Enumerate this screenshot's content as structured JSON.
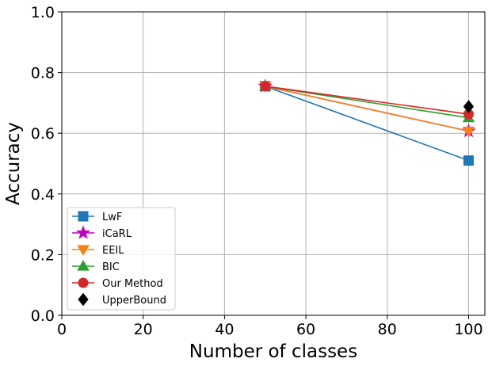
{
  "chart_data": {
    "type": "line",
    "title": "",
    "xlabel": "Number of classes",
    "ylabel": "Accuracy",
    "xlim": [
      0,
      104
    ],
    "ylim": [
      0,
      1.0
    ],
    "xticks": [
      0,
      20,
      40,
      60,
      80,
      100
    ],
    "yticks": [
      0.0,
      0.2,
      0.4,
      0.6,
      0.8,
      1.0
    ],
    "xtick_labels": [
      "0",
      "20",
      "40",
      "60",
      "80",
      "100"
    ],
    "ytick_labels": [
      "0.0",
      "0.2",
      "0.4",
      "0.6",
      "0.8",
      "1.0"
    ],
    "grid": true,
    "legend_position": "lower-left",
    "series": [
      {
        "name": "LwF",
        "x": [
          50,
          100
        ],
        "y": [
          0.755,
          0.51
        ],
        "color": "#1f77b4",
        "marker": "square",
        "line": true
      },
      {
        "name": "iCaRL",
        "x": [
          50,
          100
        ],
        "y": [
          0.755,
          0.607
        ],
        "color": "#bf00bf",
        "marker": "star",
        "line": true
      },
      {
        "name": "EEIL",
        "x": [
          50,
          100
        ],
        "y": [
          0.755,
          0.607
        ],
        "color": "#ff7f0e",
        "marker": "triangle-down",
        "line": true
      },
      {
        "name": "BIC",
        "x": [
          50,
          100
        ],
        "y": [
          0.755,
          0.651
        ],
        "color": "#2ca02c",
        "marker": "triangle-up",
        "line": true
      },
      {
        "name": "Our Method",
        "x": [
          50,
          100
        ],
        "y": [
          0.755,
          0.663
        ],
        "color": "#d62728",
        "marker": "circle",
        "line": true
      },
      {
        "name": "UpperBound",
        "x": [
          100
        ],
        "y": [
          0.688
        ],
        "color": "#000000",
        "marker": "diamond",
        "line": false
      }
    ]
  }
}
